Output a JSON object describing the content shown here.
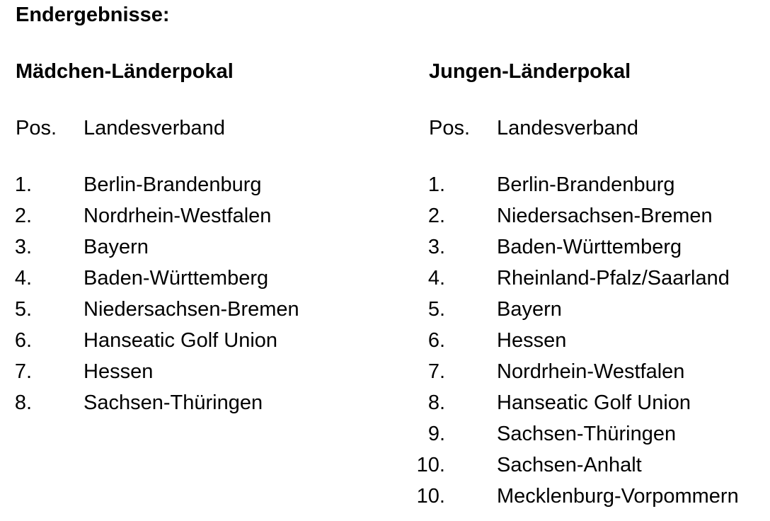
{
  "page": {
    "title": "Endergebnisse:"
  },
  "columns": [
    {
      "heading": "Mädchen-Länderpokal",
      "headers": {
        "pos": "Pos.",
        "verband": "Landesverband"
      },
      "rows": [
        {
          "pos": "1.",
          "verband": "Berlin-Brandenburg"
        },
        {
          "pos": "2.",
          "verband": "Nordrhein-Westfalen"
        },
        {
          "pos": "3.",
          "verband": "Bayern"
        },
        {
          "pos": "4.",
          "verband": "Baden-Württemberg"
        },
        {
          "pos": "5.",
          "verband": "Niedersachsen-Bremen"
        },
        {
          "pos": "6.",
          "verband": "Hanseatic Golf Union"
        },
        {
          "pos": "7.",
          "verband": "Hessen"
        },
        {
          "pos": "8.",
          "verband": "Sachsen-Thüringen"
        }
      ]
    },
    {
      "heading": "Jungen-Länderpokal",
      "headers": {
        "pos": "Pos.",
        "verband": "Landesverband"
      },
      "rows": [
        {
          "pos": "1.",
          "verband": "Berlin-Brandenburg"
        },
        {
          "pos": "2.",
          "verband": "Niedersachsen-Bremen"
        },
        {
          "pos": "3.",
          "verband": "Baden-Württemberg"
        },
        {
          "pos": "4.",
          "verband": "Rheinland-Pfalz/Saarland"
        },
        {
          "pos": "5.",
          "verband": "Bayern"
        },
        {
          "pos": "6.",
          "verband": "Hessen"
        },
        {
          "pos": "7.",
          "verband": "Nordrhein-Westfalen"
        },
        {
          "pos": "8.",
          "verband": "Hanseatic Golf Union"
        },
        {
          "pos": "9.",
          "verband": "Sachsen-Thüringen"
        },
        {
          "pos": "10.",
          "verband": "Sachsen-Anhalt"
        },
        {
          "pos": "10.",
          "verband": "Mecklenburg-Vorpommern"
        }
      ]
    }
  ],
  "colors": {
    "text": "#000000",
    "background": "#ffffff"
  }
}
